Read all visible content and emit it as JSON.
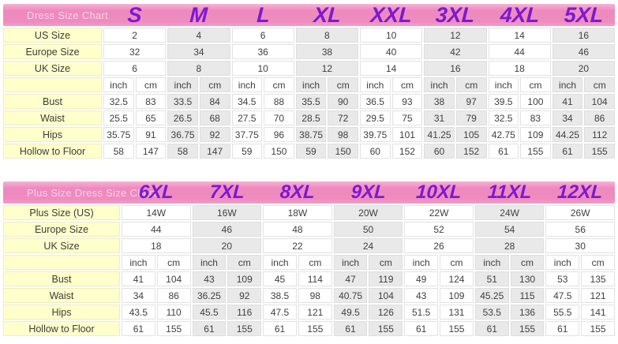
{
  "colors": {
    "header_pink": "#ee8cbf",
    "accent_purple": "#7d18d2",
    "label_yellow": "#ffffcc",
    "stripe_gray": "#e9e9e9"
  },
  "chart_data": [
    {
      "type": "table",
      "title": "Dress Size Chart",
      "size_headers": [
        "S",
        "M",
        "L",
        "XL",
        "XXL",
        "3XL",
        "4XL",
        "5XL"
      ],
      "size_rows": [
        {
          "label": "US Size",
          "values": [
            "2",
            "4",
            "6",
            "8",
            "10",
            "12",
            "14",
            "16"
          ]
        },
        {
          "label": "Europe Size",
          "values": [
            "32",
            "34",
            "36",
            "38",
            "40",
            "42",
            "44",
            "46"
          ]
        },
        {
          "label": "UK Size",
          "values": [
            "6",
            "8",
            "10",
            "12",
            "14",
            "16",
            "18",
            "20"
          ]
        }
      ],
      "unit_labels": [
        "inch",
        "cm"
      ],
      "measure_rows": [
        {
          "label": "Bust",
          "values": [
            [
              "32.5",
              "83"
            ],
            [
              "33.5",
              "84"
            ],
            [
              "34.5",
              "88"
            ],
            [
              "35.5",
              "90"
            ],
            [
              "36.5",
              "93"
            ],
            [
              "38",
              "97"
            ],
            [
              "39.5",
              "100"
            ],
            [
              "41",
              "104"
            ]
          ]
        },
        {
          "label": "Waist",
          "values": [
            [
              "25.5",
              "65"
            ],
            [
              "26.5",
              "68"
            ],
            [
              "27.5",
              "70"
            ],
            [
              "28.5",
              "72"
            ],
            [
              "29.5",
              "75"
            ],
            [
              "31",
              "79"
            ],
            [
              "32.5",
              "83"
            ],
            [
              "34",
              "86"
            ]
          ]
        },
        {
          "label": "Hips",
          "values": [
            [
              "35.75",
              "91"
            ],
            [
              "36.75",
              "92"
            ],
            [
              "37.75",
              "96"
            ],
            [
              "38.75",
              "98"
            ],
            [
              "39.75",
              "101"
            ],
            [
              "41.25",
              "105"
            ],
            [
              "42.75",
              "109"
            ],
            [
              "44.25",
              "112"
            ]
          ]
        },
        {
          "label": "Hollow to Floor",
          "values": [
            [
              "58",
              "147"
            ],
            [
              "58",
              "147"
            ],
            [
              "59",
              "150"
            ],
            [
              "59",
              "150"
            ],
            [
              "60",
              "152"
            ],
            [
              "60",
              "152"
            ],
            [
              "61",
              "155"
            ],
            [
              "61",
              "155"
            ]
          ]
        }
      ]
    },
    {
      "type": "table",
      "title": "Plus Size Dress Size Chart",
      "size_headers": [
        "6XL",
        "7XL",
        "8XL",
        "9XL",
        "10XL",
        "11XL",
        "12XL"
      ],
      "size_rows": [
        {
          "label": "Plus Size (US)",
          "values": [
            "14W",
            "16W",
            "18W",
            "20W",
            "22W",
            "24W",
            "26W"
          ]
        },
        {
          "label": "Europe Size",
          "values": [
            "44",
            "46",
            "48",
            "50",
            "52",
            "54",
            "56"
          ]
        },
        {
          "label": "UK Size",
          "values": [
            "18",
            "20",
            "22",
            "24",
            "26",
            "28",
            "30"
          ]
        }
      ],
      "unit_labels": [
        "inch",
        "cm"
      ],
      "measure_rows": [
        {
          "label": "Bust",
          "values": [
            [
              "41",
              "104"
            ],
            [
              "43",
              "109"
            ],
            [
              "45",
              "114"
            ],
            [
              "47",
              "119"
            ],
            [
              "49",
              "124"
            ],
            [
              "51",
              "130"
            ],
            [
              "53",
              "135"
            ]
          ]
        },
        {
          "label": "Waist",
          "values": [
            [
              "34",
              "86"
            ],
            [
              "36.25",
              "92"
            ],
            [
              "38.5",
              "98"
            ],
            [
              "40.75",
              "104"
            ],
            [
              "43",
              "109"
            ],
            [
              "45.25",
              "115"
            ],
            [
              "47.5",
              "121"
            ]
          ]
        },
        {
          "label": "Hips",
          "values": [
            [
              "43.5",
              "110"
            ],
            [
              "45.5",
              "116"
            ],
            [
              "47.5",
              "121"
            ],
            [
              "49.5",
              "126"
            ],
            [
              "51.5",
              "131"
            ],
            [
              "53.5",
              "136"
            ],
            [
              "55.5",
              "141"
            ]
          ]
        },
        {
          "label": "Hollow to Floor",
          "values": [
            [
              "61",
              "155"
            ],
            [
              "61",
              "155"
            ],
            [
              "61",
              "155"
            ],
            [
              "61",
              "155"
            ],
            [
              "61",
              "155"
            ],
            [
              "61",
              "155"
            ],
            [
              "61",
              "155"
            ]
          ]
        }
      ]
    }
  ]
}
